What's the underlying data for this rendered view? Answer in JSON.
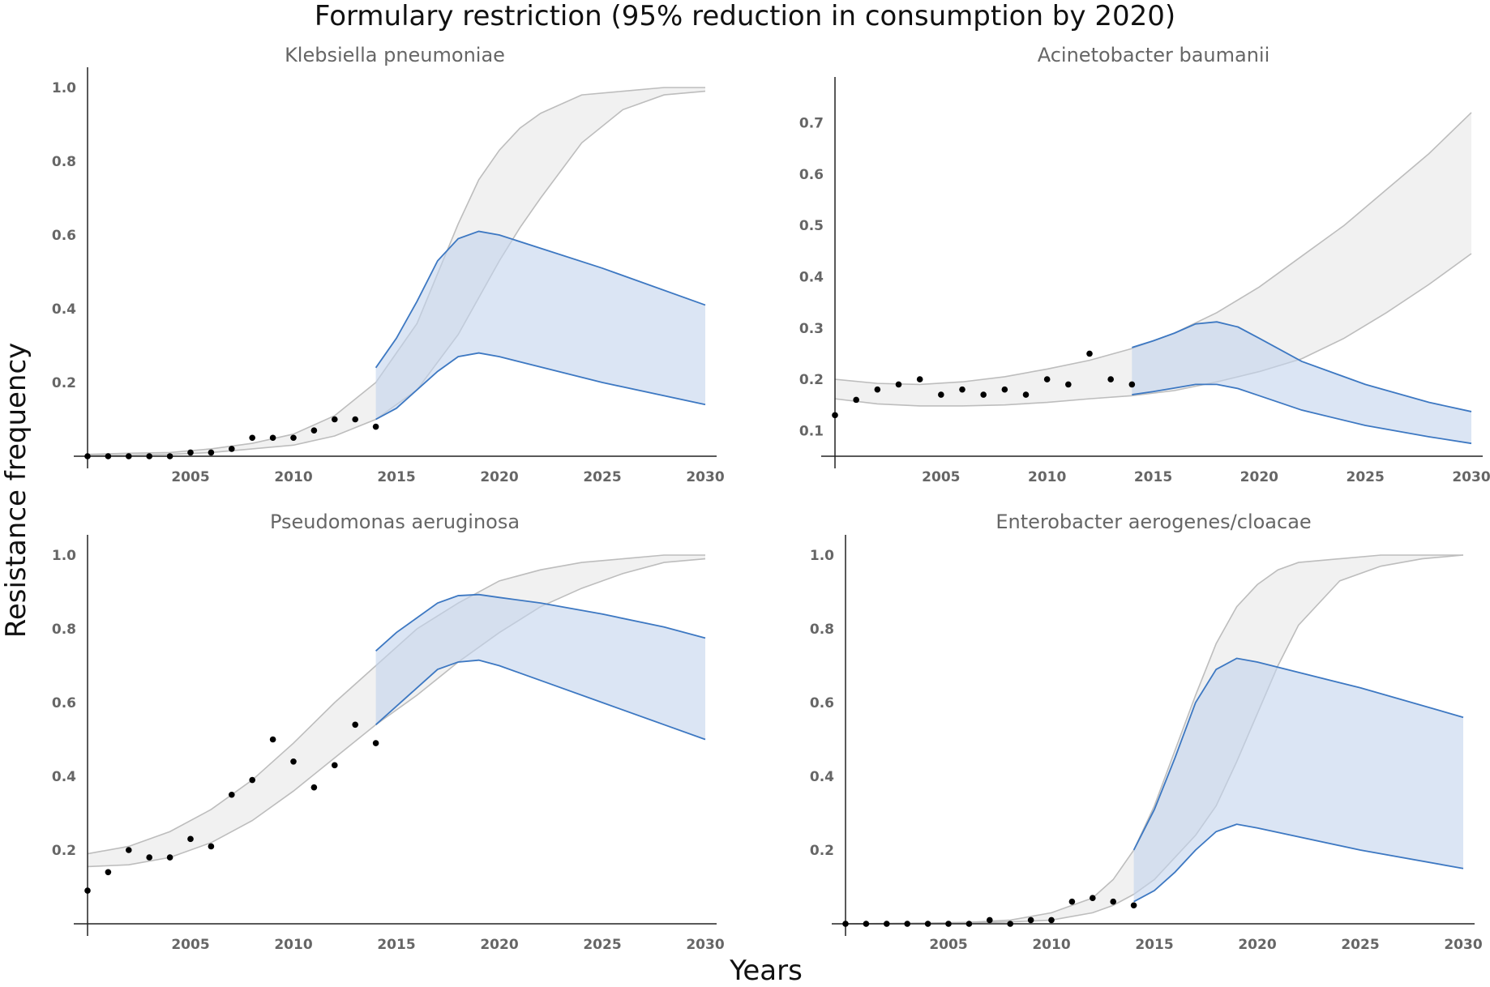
{
  "title": "Formulary restriction (95% reduction in consumption by 2020)",
  "ylabel": "Resistance frequency",
  "xlabel": "Years",
  "chart_data": [
    {
      "type": "line",
      "title": "Klebsiella pneumoniae",
      "xlim": [
        2000,
        2030
      ],
      "ylim": [
        0,
        1.0
      ],
      "x_ticks": [
        2005,
        2010,
        2015,
        2020,
        2025,
        2030
      ],
      "y_ticks": [
        0.2,
        0.4,
        0.6,
        0.8,
        1.0
      ],
      "observed": {
        "x": [
          2000,
          2001,
          2002,
          2003,
          2004,
          2005,
          2006,
          2007,
          2008,
          2009,
          2010,
          2011,
          2012,
          2013,
          2014
        ],
        "y": [
          0.0,
          0.0,
          0.0,
          0.0,
          0.0,
          0.01,
          0.01,
          0.02,
          0.05,
          0.05,
          0.05,
          0.07,
          0.1,
          0.1,
          0.08
        ]
      },
      "baseline_band": {
        "x": [
          2000,
          2002,
          2004,
          2006,
          2008,
          2010,
          2012,
          2014,
          2016,
          2018,
          2019,
          2020,
          2021,
          2022,
          2024,
          2026,
          2028,
          2030
        ],
        "upper": [
          0.005,
          0.008,
          0.01,
          0.02,
          0.035,
          0.06,
          0.11,
          0.2,
          0.36,
          0.63,
          0.75,
          0.83,
          0.89,
          0.93,
          0.98,
          0.99,
          1.0,
          1.0
        ],
        "lower": [
          0.002,
          0.003,
          0.005,
          0.01,
          0.02,
          0.03,
          0.055,
          0.1,
          0.18,
          0.33,
          0.43,
          0.53,
          0.62,
          0.7,
          0.85,
          0.94,
          0.98,
          0.99
        ]
      },
      "intervention_band": {
        "x": [
          2014,
          2015,
          2016,
          2017,
          2018,
          2019,
          2020,
          2025,
          2030
        ],
        "upper": [
          0.24,
          0.32,
          0.42,
          0.53,
          0.59,
          0.61,
          0.6,
          0.51,
          0.41
        ],
        "lower": [
          0.1,
          0.13,
          0.18,
          0.23,
          0.27,
          0.28,
          0.27,
          0.2,
          0.14
        ]
      }
    },
    {
      "type": "line",
      "title": "Acinetobacter baumanii",
      "xlim": [
        2000,
        2030
      ],
      "ylim": [
        0.05,
        0.75
      ],
      "x_ticks": [
        2005,
        2010,
        2015,
        2020,
        2025,
        2030
      ],
      "y_ticks": [
        0.1,
        0.2,
        0.3,
        0.4,
        0.5,
        0.6,
        0.7
      ],
      "observed": {
        "x": [
          2000,
          2001,
          2002,
          2003,
          2004,
          2005,
          2006,
          2007,
          2008,
          2009,
          2010,
          2011,
          2012,
          2013,
          2014
        ],
        "y": [
          0.13,
          0.16,
          0.18,
          0.19,
          0.2,
          0.17,
          0.18,
          0.17,
          0.18,
          0.17,
          0.2,
          0.19,
          0.25,
          0.2,
          0.19
        ]
      },
      "baseline_band": {
        "x": [
          2000,
          2002,
          2004,
          2006,
          2008,
          2010,
          2012,
          2014,
          2016,
          2018,
          2020,
          2022,
          2024,
          2026,
          2028,
          2030
        ],
        "upper": [
          0.2,
          0.192,
          0.19,
          0.195,
          0.205,
          0.22,
          0.237,
          0.26,
          0.29,
          0.33,
          0.38,
          0.44,
          0.5,
          0.57,
          0.64,
          0.72
        ],
        "lower": [
          0.162,
          0.152,
          0.148,
          0.148,
          0.15,
          0.155,
          0.162,
          0.168,
          0.178,
          0.195,
          0.215,
          0.24,
          0.28,
          0.33,
          0.385,
          0.445
        ]
      },
      "intervention_band": {
        "x": [
          2014,
          2015,
          2016,
          2017,
          2018,
          2019,
          2020,
          2022,
          2025,
          2028,
          2030
        ],
        "upper": [
          0.262,
          0.275,
          0.29,
          0.308,
          0.312,
          0.302,
          0.28,
          0.235,
          0.19,
          0.155,
          0.137
        ],
        "lower": [
          0.17,
          0.176,
          0.183,
          0.19,
          0.19,
          0.182,
          0.168,
          0.14,
          0.11,
          0.088,
          0.075
        ]
      }
    },
    {
      "type": "line",
      "title": "Pseudomonas aeruginosa",
      "xlim": [
        2000,
        2030
      ],
      "ylim": [
        0,
        1.0
      ],
      "x_ticks": [
        2005,
        2010,
        2015,
        2020,
        2025,
        2030
      ],
      "y_ticks": [
        0.2,
        0.4,
        0.6,
        0.8,
        1.0
      ],
      "observed": {
        "x": [
          2000,
          2001,
          2002,
          2003,
          2004,
          2005,
          2006,
          2007,
          2008,
          2009,
          2010,
          2011,
          2012,
          2013,
          2014
        ],
        "y": [
          0.09,
          0.14,
          0.2,
          0.18,
          0.18,
          0.23,
          0.21,
          0.35,
          0.39,
          0.5,
          0.44,
          0.37,
          0.43,
          0.54,
          0.49
        ]
      },
      "baseline_band": {
        "x": [
          2000,
          2002,
          2004,
          2006,
          2008,
          2010,
          2012,
          2014,
          2016,
          2018,
          2020,
          2022,
          2024,
          2026,
          2028,
          2030
        ],
        "upper": [
          0.19,
          0.21,
          0.25,
          0.31,
          0.39,
          0.49,
          0.6,
          0.7,
          0.8,
          0.87,
          0.93,
          0.96,
          0.98,
          0.99,
          1.0,
          1.0
        ],
        "lower": [
          0.155,
          0.16,
          0.18,
          0.22,
          0.28,
          0.36,
          0.45,
          0.54,
          0.62,
          0.71,
          0.79,
          0.86,
          0.91,
          0.95,
          0.98,
          0.99
        ]
      },
      "intervention_band": {
        "x": [
          2014,
          2015,
          2016,
          2017,
          2018,
          2019,
          2020,
          2022,
          2025,
          2028,
          2030
        ],
        "upper": [
          0.74,
          0.79,
          0.83,
          0.87,
          0.89,
          0.893,
          0.885,
          0.87,
          0.84,
          0.805,
          0.775
        ],
        "lower": [
          0.54,
          0.59,
          0.64,
          0.69,
          0.71,
          0.715,
          0.7,
          0.66,
          0.6,
          0.54,
          0.5
        ]
      }
    },
    {
      "type": "line",
      "title": "Enterobacter aerogenes/cloacae",
      "xlim": [
        2000,
        2030
      ],
      "ylim": [
        0,
        1.0
      ],
      "x_ticks": [
        2005,
        2010,
        2015,
        2020,
        2025,
        2030
      ],
      "y_ticks": [
        0.2,
        0.4,
        0.6,
        0.8,
        1.0
      ],
      "observed": {
        "x": [
          2000,
          2001,
          2002,
          2003,
          2004,
          2005,
          2006,
          2007,
          2008,
          2009,
          2010,
          2011,
          2012,
          2013,
          2014
        ],
        "y": [
          0.0,
          0.0,
          0.0,
          0.0,
          0.0,
          0.0,
          0.0,
          0.01,
          0.0,
          0.01,
          0.01,
          0.06,
          0.07,
          0.06,
          0.05
        ]
      },
      "baseline_band": {
        "x": [
          2000,
          2002,
          2004,
          2006,
          2008,
          2010,
          2012,
          2013,
          2014,
          2015,
          2016,
          2017,
          2018,
          2019,
          2020,
          2021,
          2022,
          2024,
          2026,
          2028,
          2030
        ],
        "upper": [
          0.0,
          0.001,
          0.002,
          0.004,
          0.01,
          0.03,
          0.07,
          0.12,
          0.2,
          0.32,
          0.47,
          0.62,
          0.76,
          0.86,
          0.92,
          0.96,
          0.98,
          0.99,
          1.0,
          1.0,
          1.0
        ],
        "lower": [
          0.0,
          0.0,
          0.001,
          0.002,
          0.005,
          0.01,
          0.03,
          0.05,
          0.08,
          0.12,
          0.18,
          0.24,
          0.32,
          0.44,
          0.57,
          0.7,
          0.81,
          0.93,
          0.97,
          0.99,
          1.0
        ]
      },
      "intervention_band": {
        "x": [
          2014,
          2015,
          2016,
          2017,
          2018,
          2019,
          2020,
          2025,
          2030
        ],
        "upper": [
          0.2,
          0.31,
          0.45,
          0.6,
          0.69,
          0.72,
          0.71,
          0.64,
          0.56
        ],
        "lower": [
          0.06,
          0.09,
          0.14,
          0.2,
          0.25,
          0.27,
          0.26,
          0.2,
          0.15
        ]
      }
    }
  ]
}
